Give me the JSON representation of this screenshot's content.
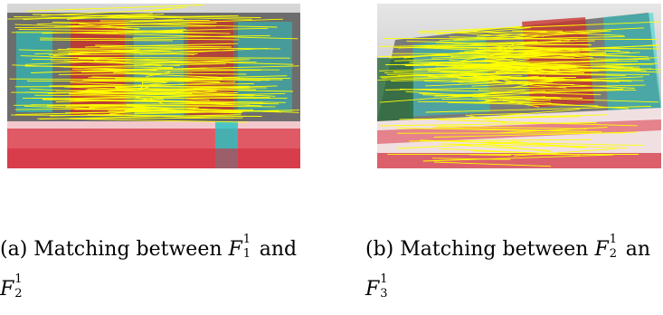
{
  "figure": {
    "panels": [
      {
        "id": "a",
        "image_alt": "stereo anaglyph of a building with yellow feature-matching lines",
        "caption_prefix": "(a) Matching between ",
        "caption_math1_base": "F",
        "caption_math1_sub": "1",
        "caption_math1_sup": "1",
        "caption_and": " and",
        "caption_math2_base": "F",
        "caption_math2_sub": "2",
        "caption_math2_sup": "1"
      },
      {
        "id": "b",
        "image_alt": "stereo anaglyph of a building with dense yellow feature-matching lines",
        "caption_prefix": "(b) Matching between ",
        "caption_math1_base": "F",
        "caption_math1_sub": "2",
        "caption_math1_sup": "1",
        "caption_and": " an",
        "caption_math2_base": "F",
        "caption_math2_sub": "3",
        "caption_math2_sup": "1"
      }
    ],
    "colors": {
      "match_line": "#ffff00",
      "anaglyph_red": "#e01a2b",
      "anaglyph_cyan": "#19d3d0"
    }
  }
}
